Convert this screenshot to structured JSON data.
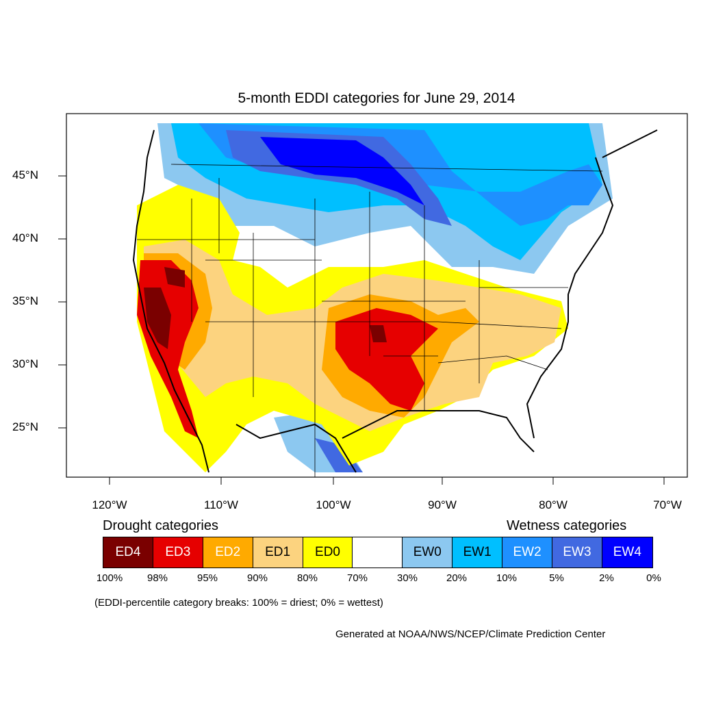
{
  "title": "5-month EDDI categories for June 29, 2014",
  "axes": {
    "lat_ticks": [
      "45°N",
      "40°N",
      "35°N",
      "30°N",
      "25°N"
    ],
    "lon_ticks": [
      "120°W",
      "110°W",
      "100°W",
      "90°W",
      "80°W",
      "70°W"
    ]
  },
  "legend": {
    "drought_title": "Drought categories",
    "wetness_title": "Wetness categories",
    "categories": [
      {
        "label": "ED4",
        "color": "#7a0000",
        "text_color": "#ffffff"
      },
      {
        "label": "ED3",
        "color": "#e60000",
        "text_color": "#ffffff"
      },
      {
        "label": "ED2",
        "color": "#ffaa00",
        "text_color": "#ffffff"
      },
      {
        "label": "ED1",
        "color": "#fcd37f",
        "text_color": "#000000"
      },
      {
        "label": "ED0",
        "color": "#ffff00",
        "text_color": "#000000"
      },
      {
        "label": "",
        "color": "#ffffff",
        "text_color": "#000000"
      },
      {
        "label": "EW0",
        "color": "#8cc8f0",
        "text_color": "#000000"
      },
      {
        "label": "EW1",
        "color": "#00bfff",
        "text_color": "#000000"
      },
      {
        "label": "EW2",
        "color": "#1e90ff",
        "text_color": "#ffffff"
      },
      {
        "label": "EW3",
        "color": "#4169e1",
        "text_color": "#ffffff"
      },
      {
        "label": "EW4",
        "color": "#0000ff",
        "text_color": "#ffffff"
      }
    ],
    "breaks": [
      "100%",
      "98%",
      "95%",
      "90%",
      "80%",
      "70%",
      "30%",
      "20%",
      "10%",
      "5%",
      "2%",
      "0%"
    ]
  },
  "note": "(EDDI-percentile category breaks: 100% = driest; 0% = wettest)",
  "credit": "Generated at NOAA/NWS/NCEP/Climate Prediction Center"
}
